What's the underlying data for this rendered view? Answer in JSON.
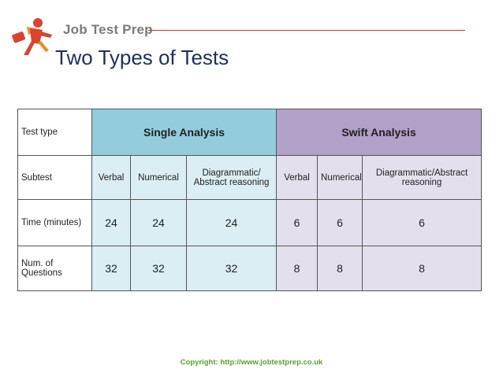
{
  "header": {
    "brand": "Job Test Prep",
    "logo_icon": "running-businessman-icon",
    "title": "Two Types of Tests",
    "rule_color": "#c2382b"
  },
  "table": {
    "row_labels": {
      "test_type": "Test type",
      "subtest": "Subtest",
      "time": "Time (minutes)",
      "questions": "Num. of Questions"
    },
    "groups": [
      {
        "name": "Single Analysis",
        "color": "#93cddd",
        "subtests": [
          {
            "name": "Verbal",
            "time": "24",
            "questions": "32"
          },
          {
            "name": "Numerical",
            "time": "24",
            "questions": "32"
          },
          {
            "name": "Diagrammatic/ Abstract reasoning",
            "time": "24",
            "questions": "32"
          }
        ]
      },
      {
        "name": "Swift Analysis",
        "color": "#b1a0c7",
        "subtests": [
          {
            "name": "Verbal",
            "time": "6",
            "questions": "8"
          },
          {
            "name": "Numerical",
            "time": "6",
            "questions": "8"
          },
          {
            "name": "Diagrammatic/Abstract reasoning",
            "time": "6",
            "questions": "8"
          }
        ]
      }
    ]
  },
  "footer": {
    "copyright": "Copyright: http://www.jobtestprep.co.uk"
  }
}
